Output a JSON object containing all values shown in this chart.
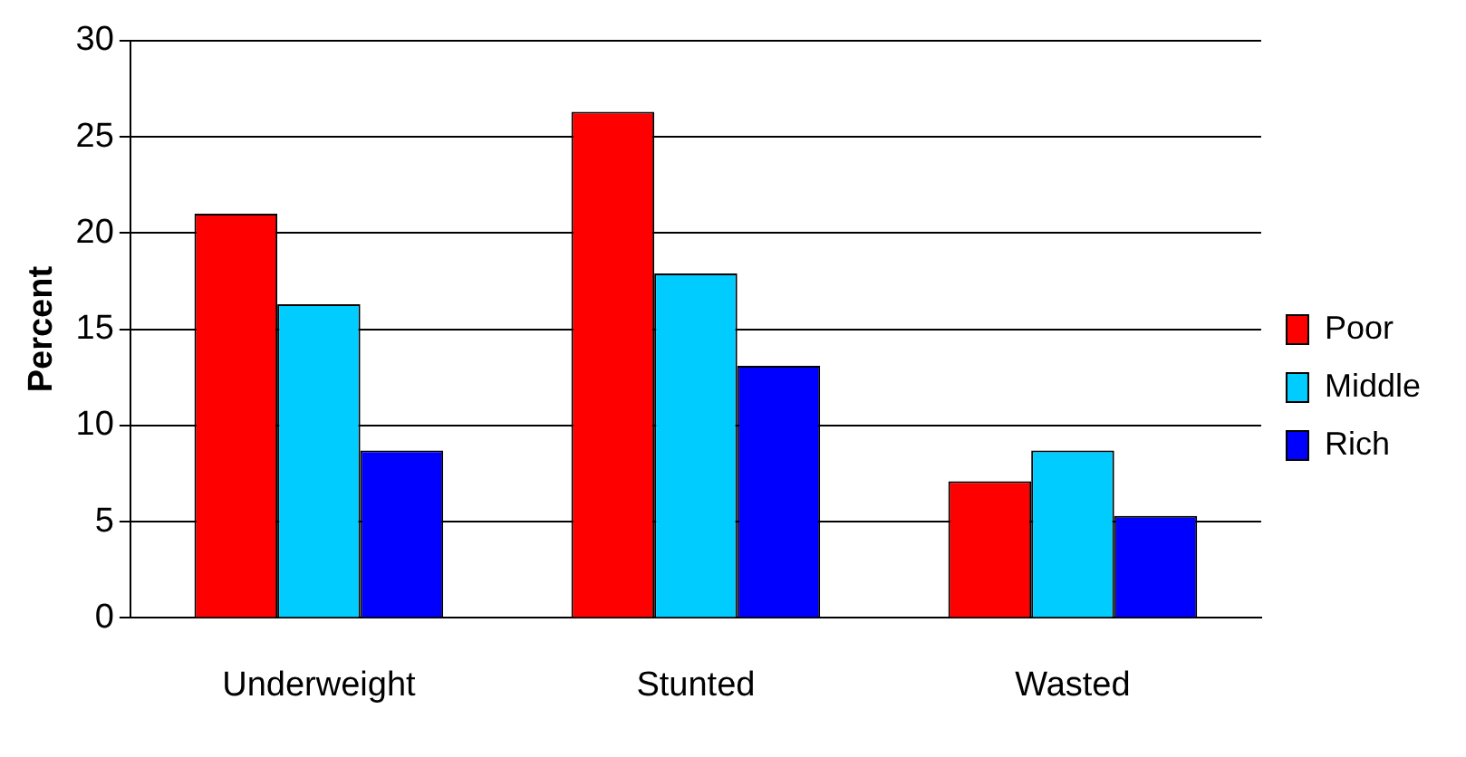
{
  "chart_data": {
    "type": "bar",
    "ylabel": "Percent",
    "categories": [
      "Underweight",
      "Stunted",
      "Wasted"
    ],
    "series": [
      {
        "name": "Poor",
        "color": "#ff0000",
        "values": [
          21.0,
          26.3,
          7.1
        ]
      },
      {
        "name": "Middle",
        "color": "#00ccff",
        "values": [
          16.3,
          17.9,
          8.7
        ]
      },
      {
        "name": "Rich",
        "color": "#0000ff",
        "values": [
          8.7,
          13.1,
          5.3
        ]
      }
    ],
    "ylim": [
      0,
      30
    ],
    "yticks": [
      0,
      5,
      10,
      15,
      20,
      25,
      30
    ],
    "grid": "y",
    "legend": "right"
  }
}
